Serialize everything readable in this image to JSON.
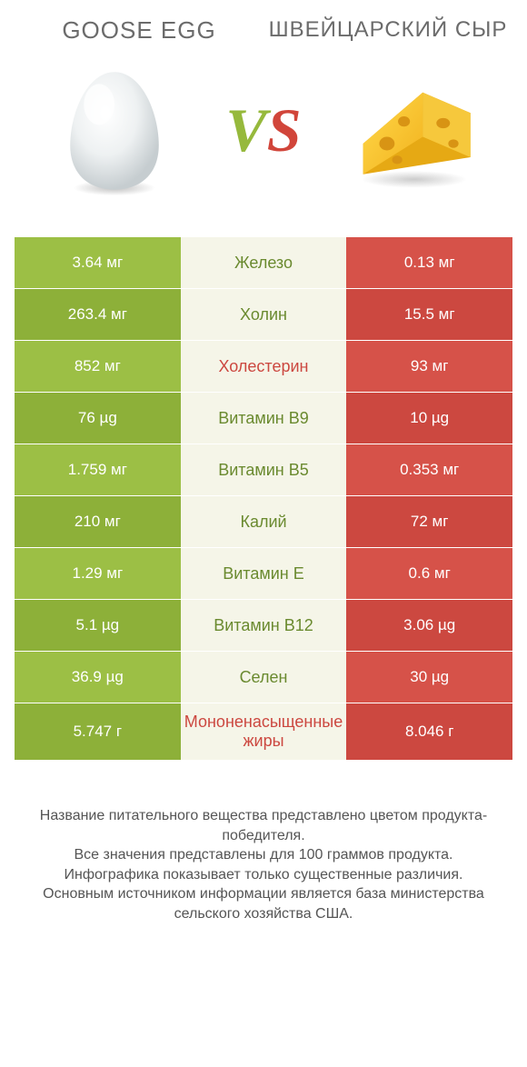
{
  "header": {
    "left_title": "GOOSE EGG",
    "right_title": "ШВЕЙЦАРСКИЙ СЫР"
  },
  "vs": {
    "v": "V",
    "s": "S"
  },
  "colors": {
    "green_odd": "#9cbf45",
    "green_even": "#8db039",
    "red_odd": "#d65249",
    "red_even": "#cc4840",
    "mid_bg": "#f5f5e8",
    "mid_text_green": "#6a8a2f",
    "mid_text_red": "#cc4840"
  },
  "rows": [
    {
      "left": "3.64 мг",
      "mid": "Железо",
      "right": "0.13 мг",
      "winner": "left"
    },
    {
      "left": "263.4 мг",
      "mid": "Холин",
      "right": "15.5 мг",
      "winner": "left"
    },
    {
      "left": "852 мг",
      "mid": "Холестерин",
      "right": "93 мг",
      "winner": "right"
    },
    {
      "left": "76 µg",
      "mid": "Витамин B9",
      "right": "10 µg",
      "winner": "left"
    },
    {
      "left": "1.759 мг",
      "mid": "Витамин B5",
      "right": "0.353 мг",
      "winner": "left"
    },
    {
      "left": "210 мг",
      "mid": "Калий",
      "right": "72 мг",
      "winner": "left"
    },
    {
      "left": "1.29 мг",
      "mid": "Витамин E",
      "right": "0.6 мг",
      "winner": "left"
    },
    {
      "left": "5.1 µg",
      "mid": "Витамин B12",
      "right": "3.06 µg",
      "winner": "left"
    },
    {
      "left": "36.9 µg",
      "mid": "Селен",
      "right": "30 µg",
      "winner": "left"
    },
    {
      "left": "5.747 г",
      "mid": "Мононенасыщенные жиры",
      "right": "8.046 г",
      "winner": "right"
    }
  ],
  "footer": {
    "line1": "Название питательного вещества представлено цветом продукта-победителя.",
    "line2": "Все значения представлены для 100 граммов продукта.",
    "line3": "Инфографика показывает только существенные различия.",
    "line4": "Основным источником информации является база министерства сельского хозяйства США."
  }
}
